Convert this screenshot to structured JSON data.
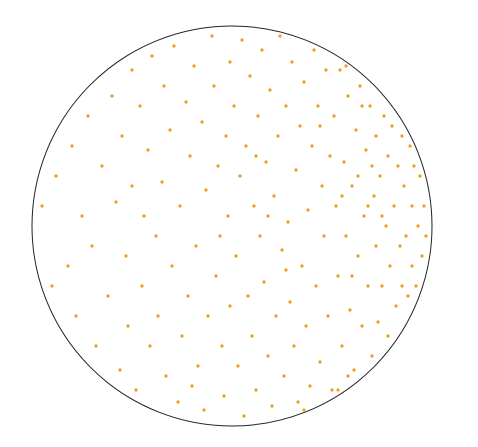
{
  "chart_data": {
    "type": "scatter",
    "color": "#f29e1f",
    "xlim": [
      -1,
      1
    ],
    "ylim": [
      -1,
      1
    ],
    "x": [
      -0.95,
      -0.9,
      -0.88,
      -0.82,
      -0.8,
      -0.78,
      -0.75,
      -0.72,
      -0.7,
      -0.68,
      -0.65,
      -0.62,
      -0.6,
      -0.58,
      -0.56,
      -0.55,
      -0.53,
      -0.52,
      -0.5,
      -0.5,
      -0.48,
      -0.46,
      -0.45,
      -0.44,
      -0.42,
      -0.41,
      -0.4,
      -0.38,
      -0.37,
      -0.35,
      -0.34,
      -0.33,
      -0.31,
      -0.3,
      -0.29,
      -0.27,
      -0.26,
      -0.25,
      -0.23,
      -0.22,
      -0.21,
      -0.19,
      -0.18,
      -0.17,
      -0.15,
      -0.14,
      -0.13,
      -0.12,
      -0.1,
      -0.09,
      -0.08,
      -0.07,
      -0.05,
      -0.04,
      -0.03,
      -0.02,
      -0.01,
      -0.01,
      -0.06,
      -0.2,
      0.01,
      0.02,
      0.03,
      0.04,
      0.05,
      0.06,
      0.07,
      0.08,
      0.09,
      0.1,
      0.11,
      0.12,
      0.13,
      0.14,
      0.15,
      0.16,
      0.17,
      0.18,
      0.19,
      0.2,
      0.21,
      0.22,
      0.23,
      0.24,
      0.25,
      0.26,
      0.27,
      0.28,
      0.29,
      0.3,
      0.31,
      0.32,
      0.33,
      0.34,
      0.35,
      0.36,
      0.37,
      0.38,
      0.39,
      0.4,
      0.41,
      0.42,
      0.43,
      0.44,
      0.45,
      0.46,
      0.47,
      0.48,
      0.49,
      0.5,
      0.12,
      0.27,
      0.36,
      0.18,
      0.44,
      0.51,
      0.52,
      0.53,
      0.54,
      0.55,
      0.56,
      0.57,
      0.58,
      0.59,
      0.6,
      0.61,
      0.62,
      0.63,
      0.64,
      0.65,
      0.66,
      0.67,
      0.68,
      0.69,
      0.7,
      0.71,
      0.72,
      0.72,
      0.73,
      0.74,
      0.75,
      0.76,
      0.77,
      0.78,
      0.78,
      0.79,
      0.8,
      0.81,
      0.82,
      0.83,
      0.84,
      0.85,
      0.85,
      0.86,
      0.87,
      0.88,
      0.89,
      0.9,
      0.9,
      0.91,
      0.92,
      0.93,
      0.94,
      0.95,
      0.96,
      0.97,
      0.55,
      0.6,
      0.65,
      0.7,
      0.75,
      0.58,
      0.63,
      0.68,
      0.53,
      0.57
    ],
    "values": [
      0.1,
      -0.3,
      0.25,
      -0.2,
      0.4,
      -0.45,
      0.05,
      0.55,
      -0.1,
      -0.6,
      0.3,
      -0.35,
      0.65,
      0.12,
      -0.72,
      0.45,
      -0.15,
      -0.5,
      0.78,
      0.2,
      -0.82,
      0.6,
      -0.3,
      0.05,
      0.38,
      -0.6,
      0.85,
      -0.05,
      -0.45,
      0.22,
      0.7,
      -0.75,
      0.48,
      -0.2,
      0.9,
      -0.88,
      0.1,
      -0.55,
      0.62,
      -0.35,
      0.35,
      0.8,
      -0.1,
      -0.7,
      0.52,
      -0.92,
      0.18,
      -0.45,
      0.95,
      0.7,
      -0.25,
      0.3,
      -0.6,
      -0.85,
      0.45,
      0.05,
      -0.4,
      0.82,
      -0.05,
      -0.8,
      0.6,
      -0.15,
      -0.7,
      0.25,
      0.93,
      -0.95,
      0.4,
      -0.35,
      0.75,
      -0.55,
      0.1,
      -0.82,
      0.55,
      -0.05,
      0.88,
      -0.28,
      0.32,
      -0.65,
      0.68,
      -0.9,
      0.15,
      -0.45,
      0.45,
      0.95,
      -0.12,
      -0.75,
      0.6,
      0.02,
      -0.38,
      0.82,
      -0.6,
      0.28,
      -0.88,
      0.5,
      -0.2,
      0.72,
      -0.5,
      0.08,
      -0.8,
      0.4,
      0.88,
      -0.3,
      0.6,
      -0.68,
      0.2,
      -0.05,
      0.78,
      -0.45,
      0.35,
      -0.82,
      0.35,
      -0.22,
      -0.92,
      0.05,
      0.5,
      0.55,
      0.1,
      -0.25,
      0.78,
      -0.6,
      0.32,
      -0.05,
      0.65,
      -0.42,
      0.2,
      -0.72,
      0.48,
      -0.15,
      0.7,
      -0.5,
      0.05,
      0.38,
      -0.3,
      0.6,
      -0.65,
      0.15,
      -0.1,
      0.45,
      -0.48,
      0.25,
      -0.3,
      0.55,
      0.0,
      -0.55,
      0.35,
      -0.2,
      0.5,
      0.1,
      -0.4,
      0.3,
      -0.1,
      0.45,
      -0.3,
      0.2,
      -0.05,
      -0.35,
      0.4,
      0.1,
      -0.2,
      0.3,
      -0.3,
      0.0,
      0.25,
      -0.15,
      0.1,
      -0.05,
      0.15,
      -0.25,
      0.6,
      0.3,
      0.05,
      -0.75,
      0.25,
      0.1,
      -0.82,
      0.8
    ]
  }
}
